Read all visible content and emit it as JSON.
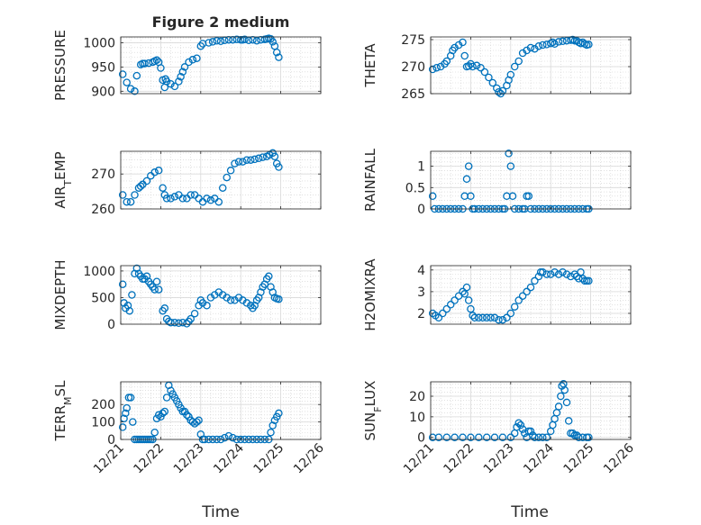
{
  "figure": {
    "title": "Figure 2 medium",
    "xlabel_left": "Time",
    "xlabel_right": "Time",
    "marker_color": "#0072BD"
  },
  "chart_data": [
    {
      "type": "scatter",
      "ylabel": "PRESSURE",
      "ylim": [
        895,
        1012
      ],
      "yticks": [
        900,
        950,
        1000
      ],
      "grid": true,
      "xlim": [
        "12/21",
        "12/26"
      ],
      "xticks": [
        "12/21",
        "12/22",
        "12/23",
        "12/24",
        "12/25",
        "12/26"
      ],
      "show_xticklabels": false,
      "x": [
        21.05,
        21.15,
        21.25,
        21.35,
        21.4,
        21.5,
        21.55,
        21.6,
        21.7,
        21.8,
        21.85,
        21.9,
        21.95,
        22.0,
        22.05,
        22.1,
        22.12,
        22.15,
        22.25,
        22.35,
        22.45,
        22.5,
        22.55,
        22.6,
        22.7,
        22.8,
        22.9,
        23.0,
        23.05,
        23.2,
        23.3,
        23.4,
        23.5,
        23.6,
        23.7,
        23.8,
        23.9,
        24.0,
        24.05,
        24.1,
        24.2,
        24.3,
        24.4,
        24.5,
        24.6,
        24.65,
        24.7,
        24.75,
        24.8,
        24.85,
        24.9,
        24.95
      ],
      "y": [
        935,
        918,
        905,
        900,
        932,
        955,
        957,
        957,
        958,
        960,
        962,
        964,
        960,
        948,
        923,
        908,
        925,
        920,
        915,
        910,
        920,
        930,
        940,
        950,
        960,
        965,
        968,
        993,
        998,
        1000,
        1002,
        1004,
        1003,
        1005,
        1006,
        1006,
        1007,
        1006,
        1006,
        1007,
        1005,
        1006,
        1004,
        1006,
        1007,
        1008,
        1009,
        1008,
        1002,
        993,
        980,
        970
      ]
    },
    {
      "type": "scatter",
      "ylabel": "THETA",
      "ylim": [
        265,
        275.5
      ],
      "yticks": [
        265,
        270,
        275
      ],
      "grid": true,
      "xlim": [
        "12/21",
        "12/26"
      ],
      "xticks": [
        "12/21",
        "12/22",
        "12/23",
        "12/24",
        "12/25",
        "12/26"
      ],
      "show_xticklabels": false,
      "x": [
        21.05,
        21.15,
        21.25,
        21.35,
        21.4,
        21.5,
        21.55,
        21.6,
        21.7,
        21.8,
        21.85,
        21.9,
        21.95,
        22.0,
        22.05,
        22.15,
        22.25,
        22.35,
        22.45,
        22.55,
        22.65,
        22.7,
        22.75,
        22.8,
        22.9,
        22.95,
        23.0,
        23.1,
        23.2,
        23.3,
        23.4,
        23.5,
        23.6,
        23.7,
        23.8,
        23.9,
        24.0,
        24.05,
        24.1,
        24.2,
        24.3,
        24.4,
        24.5,
        24.55,
        24.6,
        24.65,
        24.7,
        24.75,
        24.8,
        24.85,
        24.9,
        24.95
      ],
      "y": [
        269.5,
        269.8,
        270,
        270.5,
        271,
        272,
        273,
        273.5,
        274,
        274.5,
        272,
        270,
        270.1,
        270.5,
        270,
        270.2,
        269.8,
        269,
        268,
        267,
        266,
        265.3,
        265,
        265.5,
        266.5,
        267.5,
        268.5,
        270,
        271,
        272.5,
        273,
        273.5,
        273.3,
        273.8,
        274,
        274.1,
        274.3,
        274.5,
        274.2,
        274.6,
        274.7,
        274.8,
        274.9,
        275,
        274.8,
        274.8,
        274.5,
        274.3,
        274.5,
        274.2,
        274,
        274.1
      ]
    },
    {
      "type": "scatter",
      "ylabel": "AIR_TEMP",
      "ylim": [
        260,
        276.5
      ],
      "yticks": [
        260,
        270
      ],
      "grid": true,
      "xlim": [
        "12/21",
        "12/26"
      ],
      "xticks": [
        "12/21",
        "12/22",
        "12/23",
        "12/24",
        "12/25",
        "12/26"
      ],
      "show_xticklabels": false,
      "x": [
        21.05,
        21.15,
        21.25,
        21.35,
        21.45,
        21.5,
        21.55,
        21.65,
        21.75,
        21.85,
        21.95,
        22.05,
        22.1,
        22.15,
        22.25,
        22.35,
        22.45,
        22.55,
        22.65,
        22.75,
        22.85,
        22.95,
        23.05,
        23.15,
        23.25,
        23.35,
        23.45,
        23.55,
        23.65,
        23.75,
        23.85,
        23.95,
        24.05,
        24.15,
        24.25,
        24.35,
        24.45,
        24.55,
        24.65,
        24.72,
        24.8,
        24.85,
        24.9,
        24.95
      ],
      "y": [
        264,
        262,
        262,
        264,
        266,
        266.5,
        267,
        268,
        269.5,
        270.5,
        271,
        266,
        264,
        263,
        263,
        263.5,
        264,
        263,
        263,
        264,
        264,
        263,
        262,
        263,
        262.5,
        263,
        262,
        266,
        269,
        271,
        273,
        273.5,
        273.5,
        274,
        274,
        274.2,
        274.5,
        274.8,
        275,
        275.5,
        276,
        275,
        273,
        272
      ]
    },
    {
      "type": "scatter",
      "ylabel": "RAINFALL",
      "ylim": [
        0,
        1.35
      ],
      "yticks": [
        0,
        0.5,
        1
      ],
      "grid": true,
      "xlim": [
        "12/21",
        "12/26"
      ],
      "xticks": [
        "12/21",
        "12/22",
        "12/23",
        "12/24",
        "12/25",
        "12/26"
      ],
      "show_xticklabels": false,
      "x": [
        21.05,
        21.1,
        21.2,
        21.3,
        21.4,
        21.5,
        21.6,
        21.7,
        21.8,
        21.85,
        21.9,
        21.95,
        22.0,
        22.05,
        22.1,
        22.2,
        22.3,
        22.4,
        22.5,
        22.6,
        22.7,
        22.8,
        22.85,
        22.9,
        22.95,
        23.0,
        23.05,
        23.1,
        23.2,
        23.3,
        23.35,
        23.4,
        23.45,
        23.5,
        23.6,
        23.7,
        23.8,
        23.9,
        24.0,
        24.1,
        24.2,
        24.3,
        24.4,
        24.5,
        24.6,
        24.7,
        24.8,
        24.9,
        24.95
      ],
      "y": [
        0.3,
        0,
        0,
        0,
        0,
        0,
        0,
        0,
        0,
        0.3,
        0.7,
        1.0,
        0.3,
        0,
        0,
        0,
        0,
        0,
        0,
        0,
        0,
        0,
        0,
        0.3,
        1.3,
        1.0,
        0.3,
        0,
        0,
        0,
        0,
        0.3,
        0.3,
        0,
        0,
        0,
        0,
        0,
        0,
        0,
        0,
        0,
        0,
        0,
        0,
        0,
        0,
        0,
        0
      ]
    },
    {
      "type": "scatter",
      "ylabel": "MIXDEPTH",
      "ylim": [
        0,
        1100
      ],
      "yticks": [
        0,
        500,
        1000
      ],
      "grid": true,
      "xlim": [
        "12/21",
        "12/26"
      ],
      "xticks": [
        "12/21",
        "12/22",
        "12/23",
        "12/24",
        "12/25",
        "12/26"
      ],
      "show_xticklabels": false,
      "x": [
        21.05,
        21.08,
        21.12,
        21.18,
        21.22,
        21.28,
        21.35,
        21.4,
        21.45,
        21.5,
        21.55,
        21.6,
        21.65,
        21.7,
        21.75,
        21.8,
        21.85,
        21.9,
        21.95,
        22.05,
        22.1,
        22.15,
        22.2,
        22.25,
        22.35,
        22.45,
        22.55,
        22.65,
        22.7,
        22.75,
        22.85,
        22.95,
        23.0,
        23.05,
        23.15,
        23.25,
        23.35,
        23.45,
        23.55,
        23.65,
        23.75,
        23.85,
        23.95,
        24.05,
        24.15,
        24.25,
        24.3,
        24.35,
        24.4,
        24.45,
        24.5,
        24.55,
        24.6,
        24.65,
        24.7,
        24.75,
        24.8,
        24.85,
        24.9,
        24.95
      ],
      "y": [
        750,
        400,
        300,
        350,
        250,
        550,
        950,
        1050,
        950,
        900,
        850,
        850,
        900,
        800,
        750,
        700,
        650,
        800,
        650,
        250,
        300,
        100,
        50,
        30,
        30,
        20,
        30,
        10,
        50,
        100,
        200,
        350,
        450,
        400,
        350,
        500,
        550,
        600,
        550,
        500,
        450,
        450,
        500,
        450,
        400,
        350,
        300,
        350,
        450,
        500,
        600,
        700,
        750,
        850,
        900,
        700,
        600,
        500,
        480,
        470
      ]
    },
    {
      "type": "scatter",
      "ylabel": "H2OMIXRA",
      "ylim": [
        1.5,
        4.2
      ],
      "yticks": [
        2,
        3,
        4
      ],
      "grid": true,
      "xlim": [
        "12/21",
        "12/26"
      ],
      "xticks": [
        "12/21",
        "12/22",
        "12/23",
        "12/24",
        "12/25",
        "12/26"
      ],
      "show_xticklabels": false,
      "x": [
        21.05,
        21.12,
        21.2,
        21.3,
        21.4,
        21.5,
        21.6,
        21.7,
        21.8,
        21.85,
        21.9,
        21.95,
        22.0,
        22.05,
        22.1,
        22.2,
        22.3,
        22.4,
        22.5,
        22.6,
        22.7,
        22.8,
        22.9,
        23.0,
        23.1,
        23.2,
        23.3,
        23.4,
        23.5,
        23.6,
        23.7,
        23.75,
        23.8,
        23.9,
        24.0,
        24.1,
        24.2,
        24.3,
        24.4,
        24.5,
        24.6,
        24.65,
        24.7,
        24.75,
        24.8,
        24.85,
        24.9,
        24.95
      ],
      "y": [
        2.0,
        1.9,
        1.8,
        2.0,
        2.2,
        2.4,
        2.6,
        2.8,
        3.0,
        2.9,
        3.2,
        2.6,
        2.2,
        1.9,
        1.8,
        1.8,
        1.8,
        1.8,
        1.8,
        1.8,
        1.7,
        1.7,
        1.8,
        2.0,
        2.3,
        2.6,
        2.8,
        3.0,
        3.2,
        3.5,
        3.7,
        3.9,
        3.9,
        3.8,
        3.8,
        3.9,
        3.8,
        3.9,
        3.8,
        3.7,
        3.8,
        3.7,
        3.6,
        3.9,
        3.6,
        3.5,
        3.5,
        3.5
      ]
    },
    {
      "type": "scatter",
      "ylabel": "TERR_MSL",
      "ylim": [
        0,
        330
      ],
      "yticks": [
        0,
        100,
        200
      ],
      "grid": true,
      "xlim": [
        "12/21",
        "12/26"
      ],
      "xticks": [
        "12/21",
        "12/22",
        "12/23",
        "12/24",
        "12/25",
        "12/26"
      ],
      "show_xticklabels": true,
      "x": [
        21.05,
        21.08,
        21.12,
        21.15,
        21.2,
        21.25,
        21.3,
        21.35,
        21.4,
        21.45,
        21.5,
        21.55,
        21.6,
        21.65,
        21.7,
        21.75,
        21.8,
        21.85,
        21.9,
        21.95,
        22.0,
        22.05,
        22.1,
        22.15,
        22.2,
        22.25,
        22.3,
        22.35,
        22.4,
        22.45,
        22.5,
        22.55,
        22.6,
        22.65,
        22.7,
        22.75,
        22.8,
        22.85,
        22.9,
        22.95,
        23.0,
        23.05,
        23.1,
        23.2,
        23.3,
        23.4,
        23.5,
        23.6,
        23.7,
        23.8,
        23.9,
        24.0,
        24.1,
        24.2,
        24.3,
        24.4,
        24.5,
        24.6,
        24.7,
        24.75,
        24.8,
        24.85,
        24.9,
        24.95
      ],
      "y": [
        70,
        120,
        150,
        180,
        240,
        240,
        100,
        0,
        0,
        0,
        0,
        0,
        0,
        0,
        0,
        0,
        0,
        40,
        120,
        140,
        130,
        150,
        160,
        240,
        310,
        280,
        260,
        240,
        220,
        200,
        180,
        160,
        160,
        140,
        130,
        110,
        100,
        90,
        100,
        110,
        30,
        0,
        0,
        0,
        0,
        0,
        0,
        10,
        20,
        10,
        0,
        0,
        0,
        0,
        0,
        0,
        0,
        0,
        0,
        40,
        80,
        110,
        130,
        150
      ]
    },
    {
      "type": "scatter",
      "ylabel": "SUN_FLUX",
      "ylim": [
        -1,
        27
      ],
      "yticks": [
        0,
        10,
        20
      ],
      "grid": true,
      "xlim": [
        "12/21",
        "12/26"
      ],
      "xticks": [
        "12/21",
        "12/22",
        "12/23",
        "12/24",
        "12/25",
        "12/26"
      ],
      "show_xticklabels": true,
      "x": [
        21.05,
        21.2,
        21.4,
        21.6,
        21.8,
        22.0,
        22.2,
        22.4,
        22.6,
        22.8,
        23.0,
        23.1,
        23.15,
        23.2,
        23.25,
        23.3,
        23.35,
        23.4,
        23.45,
        23.5,
        23.55,
        23.6,
        23.7,
        23.8,
        23.9,
        24.0,
        24.05,
        24.1,
        24.15,
        24.2,
        24.25,
        24.28,
        24.32,
        24.35,
        24.4,
        24.45,
        24.5,
        24.55,
        24.6,
        24.65,
        24.7,
        24.8,
        24.9,
        24.95
      ],
      "y": [
        0,
        0,
        0,
        0,
        0,
        0,
        0,
        0,
        0,
        0,
        0,
        2,
        5,
        7,
        6,
        4,
        2,
        0,
        3,
        3,
        1,
        0,
        0,
        0,
        0,
        3,
        6,
        9,
        12,
        15,
        20,
        25,
        26,
        23,
        17,
        8,
        2,
        2,
        1,
        1,
        0,
        0,
        0,
        0
      ]
    }
  ]
}
